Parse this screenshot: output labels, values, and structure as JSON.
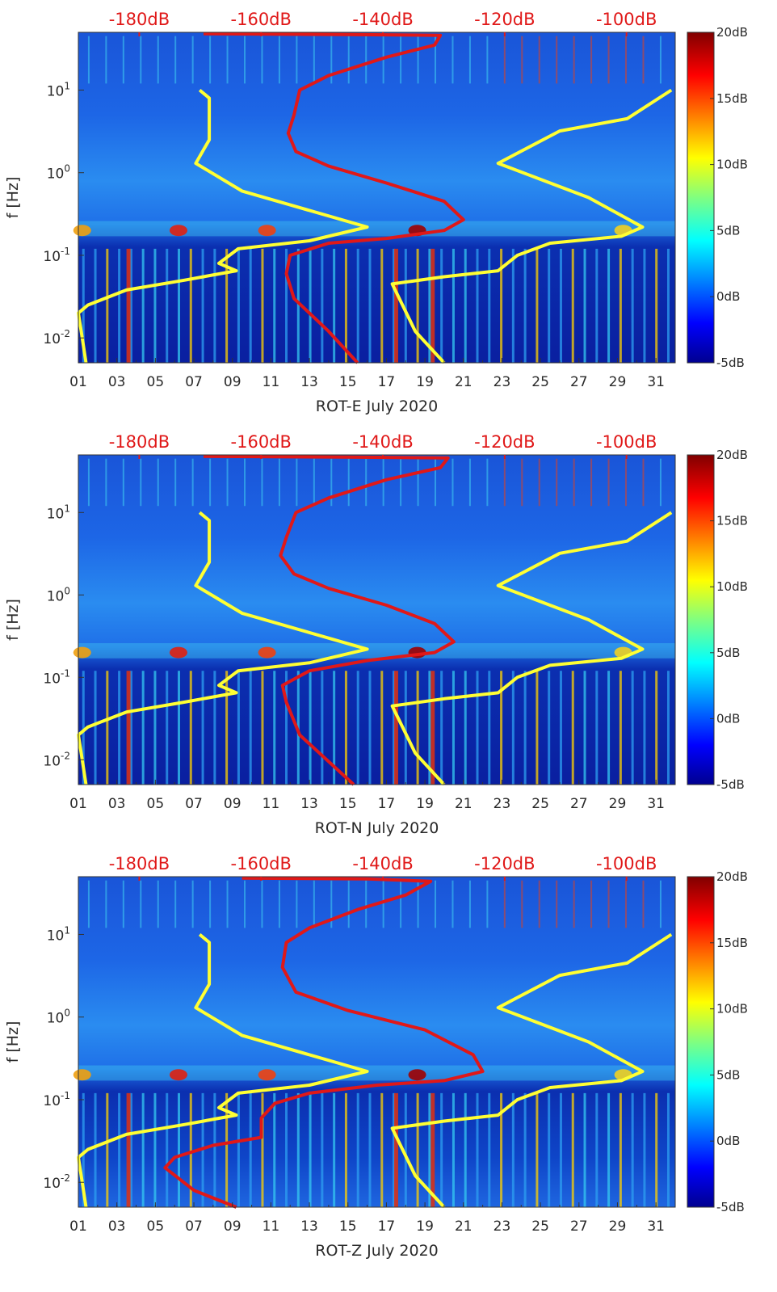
{
  "chart_data": [
    {
      "type": "heatmap",
      "title": "",
      "xlabel": "ROT-E July 2020",
      "ylabel": "f [Hz]",
      "x_tick_labels": [
        "01",
        "03",
        "05",
        "07",
        "09",
        "11",
        "13",
        "15",
        "17",
        "19",
        "21",
        "23",
        "25",
        "27",
        "29",
        "31"
      ],
      "x_ticks_day": [
        1,
        3,
        5,
        7,
        9,
        11,
        13,
        15,
        17,
        19,
        21,
        23,
        25,
        27,
        29,
        31
      ],
      "xlim": [
        1,
        32
      ],
      "ylim": [
        0.005,
        50
      ],
      "yscale": "log",
      "y_ticks": [
        {
          "value": 0.01,
          "base": "10",
          "exp": "-2"
        },
        {
          "value": 0.1,
          "base": "10",
          "exp": "-1"
        },
        {
          "value": 1,
          "base": "10",
          "exp": "0"
        },
        {
          "value": 10,
          "base": "10",
          "exp": "1"
        }
      ],
      "top_axis_labels": [
        "-180dB",
        "-160dB",
        "-140dB",
        "-120dB",
        "-100dB"
      ],
      "top_axis_values": [
        -180,
        -160,
        -140,
        -120,
        -100
      ],
      "top_axis_range": [
        -190,
        -92
      ],
      "colorbar": {
        "min": -5,
        "max": 20,
        "labels": [
          "20dB",
          "15dB",
          "10dB",
          "5dB",
          "0dB",
          "-5dB"
        ],
        "values": [
          20,
          15,
          10,
          5,
          0,
          -5
        ],
        "colormap": "jet"
      },
      "series": [
        {
          "name": "yellow-left",
          "color": "#ffff33",
          "points": [
            [
              7.3,
              10
            ],
            [
              7.8,
              8
            ],
            [
              7.8,
              2.5
            ],
            [
              7.1,
              1.3
            ],
            [
              9.5,
              0.6
            ],
            [
              16,
              0.22
            ],
            [
              13,
              0.15
            ],
            [
              9.3,
              0.12
            ],
            [
              8.3,
              0.08
            ],
            [
              9.2,
              0.065
            ],
            [
              6.5,
              0.05
            ],
            [
              3.5,
              0.038
            ],
            [
              1.5,
              0.025
            ],
            [
              1,
              0.02
            ],
            [
              1.2,
              0.01
            ],
            [
              1.4,
              0.005
            ]
          ]
        },
        {
          "name": "yellow-right",
          "color": "#ffff33",
          "points": [
            [
              31.8,
              10
            ],
            [
              29.5,
              4.5
            ],
            [
              26,
              3.2
            ],
            [
              22.8,
              1.3
            ],
            [
              27.5,
              0.5
            ],
            [
              30.3,
              0.22
            ],
            [
              29.2,
              0.17
            ],
            [
              25.5,
              0.14
            ],
            [
              23.8,
              0.1
            ],
            [
              22.8,
              0.065
            ],
            [
              20,
              0.055
            ],
            [
              17.3,
              0.045
            ],
            [
              18.5,
              0.012
            ],
            [
              20,
              0.005
            ]
          ]
        },
        {
          "name": "red-noise-model",
          "color": "#e01818",
          "points": [
            [
              7.5,
              48
            ],
            [
              15,
              47
            ],
            [
              19.8,
              46
            ],
            [
              19.5,
              35
            ],
            [
              17,
              25
            ],
            [
              14,
              15
            ],
            [
              12.5,
              10
            ],
            [
              12.2,
              5
            ],
            [
              11.9,
              3
            ],
            [
              12.3,
              1.8
            ],
            [
              14,
              1.2
            ],
            [
              17,
              0.75
            ],
            [
              20,
              0.45
            ],
            [
              21,
              0.27
            ],
            [
              20,
              0.2
            ],
            [
              17,
              0.16
            ],
            [
              14,
              0.14
            ],
            [
              12,
              0.1
            ],
            [
              11.8,
              0.06
            ],
            [
              12.2,
              0.03
            ],
            [
              14,
              0.012
            ],
            [
              15.5,
              0.005
            ]
          ]
        }
      ]
    },
    {
      "type": "heatmap",
      "title": "",
      "xlabel": "ROT-N July 2020",
      "ylabel": "f [Hz]",
      "x_tick_labels": [
        "01",
        "03",
        "05",
        "07",
        "09",
        "11",
        "13",
        "15",
        "17",
        "19",
        "21",
        "23",
        "25",
        "27",
        "29",
        "31"
      ],
      "x_ticks_day": [
        1,
        3,
        5,
        7,
        9,
        11,
        13,
        15,
        17,
        19,
        21,
        23,
        25,
        27,
        29,
        31
      ],
      "xlim": [
        1,
        32
      ],
      "ylim": [
        0.005,
        50
      ],
      "yscale": "log",
      "y_ticks": [
        {
          "value": 0.01,
          "base": "10",
          "exp": "-2"
        },
        {
          "value": 0.1,
          "base": "10",
          "exp": "-1"
        },
        {
          "value": 1,
          "base": "10",
          "exp": "0"
        },
        {
          "value": 10,
          "base": "10",
          "exp": "1"
        }
      ],
      "top_axis_labels": [
        "-180dB",
        "-160dB",
        "-140dB",
        "-120dB",
        "-100dB"
      ],
      "top_axis_values": [
        -180,
        -160,
        -140,
        -120,
        -100
      ],
      "top_axis_range": [
        -190,
        -92
      ],
      "colorbar": {
        "min": -5,
        "max": 20,
        "labels": [
          "20dB",
          "15dB",
          "10dB",
          "5dB",
          "0dB",
          "-5dB"
        ],
        "values": [
          20,
          15,
          10,
          5,
          0,
          -5
        ],
        "colormap": "jet"
      },
      "series": [
        {
          "name": "yellow-left",
          "color": "#ffff33",
          "points": [
            [
              7.3,
              10
            ],
            [
              7.8,
              8
            ],
            [
              7.8,
              2.5
            ],
            [
              7.1,
              1.3
            ],
            [
              9.5,
              0.6
            ],
            [
              16,
              0.22
            ],
            [
              13,
              0.15
            ],
            [
              9.3,
              0.12
            ],
            [
              8.3,
              0.08
            ],
            [
              9.2,
              0.065
            ],
            [
              6.5,
              0.05
            ],
            [
              3.5,
              0.038
            ],
            [
              1.5,
              0.025
            ],
            [
              1,
              0.02
            ],
            [
              1.2,
              0.01
            ],
            [
              1.4,
              0.005
            ]
          ]
        },
        {
          "name": "yellow-right",
          "color": "#ffff33",
          "points": [
            [
              31.8,
              10
            ],
            [
              29.5,
              4.5
            ],
            [
              26,
              3.2
            ],
            [
              22.8,
              1.3
            ],
            [
              27.5,
              0.5
            ],
            [
              30.3,
              0.22
            ],
            [
              29.2,
              0.17
            ],
            [
              25.5,
              0.14
            ],
            [
              23.8,
              0.1
            ],
            [
              22.8,
              0.065
            ],
            [
              20,
              0.055
            ],
            [
              17.3,
              0.045
            ],
            [
              18.5,
              0.012
            ],
            [
              20,
              0.005
            ]
          ]
        },
        {
          "name": "red-noise-model",
          "color": "#e01818",
          "points": [
            [
              7.5,
              48
            ],
            [
              15,
              47
            ],
            [
              20.2,
              46
            ],
            [
              19.8,
              35
            ],
            [
              17,
              25
            ],
            [
              14,
              15
            ],
            [
              12.3,
              10
            ],
            [
              11.8,
              5
            ],
            [
              11.5,
              3
            ],
            [
              12.2,
              1.8
            ],
            [
              14,
              1.2
            ],
            [
              17,
              0.75
            ],
            [
              19.5,
              0.45
            ],
            [
              20.5,
              0.27
            ],
            [
              19.5,
              0.2
            ],
            [
              16,
              0.16
            ],
            [
              13,
              0.12
            ],
            [
              11.6,
              0.08
            ],
            [
              11.8,
              0.05
            ],
            [
              12.5,
              0.02
            ],
            [
              15.3,
              0.005
            ]
          ]
        }
      ]
    },
    {
      "type": "heatmap",
      "title": "",
      "xlabel": "ROT-Z July 2020",
      "ylabel": "f [Hz]",
      "x_tick_labels": [
        "01",
        "03",
        "05",
        "07",
        "09",
        "11",
        "13",
        "15",
        "17",
        "19",
        "21",
        "23",
        "25",
        "27",
        "29",
        "31"
      ],
      "x_ticks_day": [
        1,
        3,
        5,
        7,
        9,
        11,
        13,
        15,
        17,
        19,
        21,
        23,
        25,
        27,
        29,
        31
      ],
      "xlim": [
        1,
        32
      ],
      "ylim": [
        0.005,
        50
      ],
      "yscale": "log",
      "y_ticks": [
        {
          "value": 0.01,
          "base": "10",
          "exp": "-2"
        },
        {
          "value": 0.1,
          "base": "10",
          "exp": "-1"
        },
        {
          "value": 1,
          "base": "10",
          "exp": "0"
        },
        {
          "value": 10,
          "base": "10",
          "exp": "1"
        }
      ],
      "top_axis_labels": [
        "-180dB",
        "-160dB",
        "-140dB",
        "-120dB",
        "-100dB"
      ],
      "top_axis_values": [
        -180,
        -160,
        -140,
        -120,
        -100
      ],
      "top_axis_range": [
        -190,
        -92
      ],
      "colorbar": {
        "min": -5,
        "max": 20,
        "labels": [
          "20dB",
          "15dB",
          "10dB",
          "5dB",
          "0dB",
          "-5dB"
        ],
        "values": [
          20,
          15,
          10,
          5,
          0,
          -5
        ],
        "colormap": "jet"
      },
      "series": [
        {
          "name": "yellow-left",
          "color": "#ffff33",
          "points": [
            [
              7.3,
              10
            ],
            [
              7.8,
              8
            ],
            [
              7.8,
              2.5
            ],
            [
              7.1,
              1.3
            ],
            [
              9.5,
              0.6
            ],
            [
              16,
              0.22
            ],
            [
              13,
              0.15
            ],
            [
              9.3,
              0.12
            ],
            [
              8.3,
              0.08
            ],
            [
              9.2,
              0.065
            ],
            [
              6.5,
              0.05
            ],
            [
              3.5,
              0.038
            ],
            [
              1.5,
              0.025
            ],
            [
              1,
              0.02
            ],
            [
              1.2,
              0.01
            ],
            [
              1.4,
              0.005
            ]
          ]
        },
        {
          "name": "yellow-right",
          "color": "#ffff33",
          "points": [
            [
              31.8,
              10
            ],
            [
              29.5,
              4.5
            ],
            [
              26,
              3.2
            ],
            [
              22.8,
              1.3
            ],
            [
              27.5,
              0.5
            ],
            [
              30.3,
              0.22
            ],
            [
              29.2,
              0.17
            ],
            [
              25.5,
              0.14
            ],
            [
              23.8,
              0.1
            ],
            [
              22.8,
              0.065
            ],
            [
              20,
              0.055
            ],
            [
              17.3,
              0.045
            ],
            [
              18.5,
              0.012
            ],
            [
              20,
              0.005
            ]
          ]
        },
        {
          "name": "red-noise-model",
          "color": "#e01818",
          "points": [
            [
              9.5,
              48
            ],
            [
              16,
              47
            ],
            [
              19.3,
              44
            ],
            [
              18,
              30
            ],
            [
              15.5,
              20
            ],
            [
              13,
              12
            ],
            [
              11.8,
              8
            ],
            [
              11.6,
              4
            ],
            [
              12.3,
              2
            ],
            [
              15,
              1.2
            ],
            [
              19,
              0.7
            ],
            [
              21.5,
              0.35
            ],
            [
              22,
              0.22
            ],
            [
              20,
              0.17
            ],
            [
              16.5,
              0.15
            ],
            [
              13,
              0.12
            ],
            [
              11.2,
              0.09
            ],
            [
              10.5,
              0.06
            ],
            [
              10.5,
              0.035
            ],
            [
              8,
              0.028
            ],
            [
              6,
              0.02
            ],
            [
              5.5,
              0.015
            ],
            [
              7,
              0.008
            ],
            [
              9.2,
              0.005
            ]
          ]
        }
      ]
    }
  ]
}
